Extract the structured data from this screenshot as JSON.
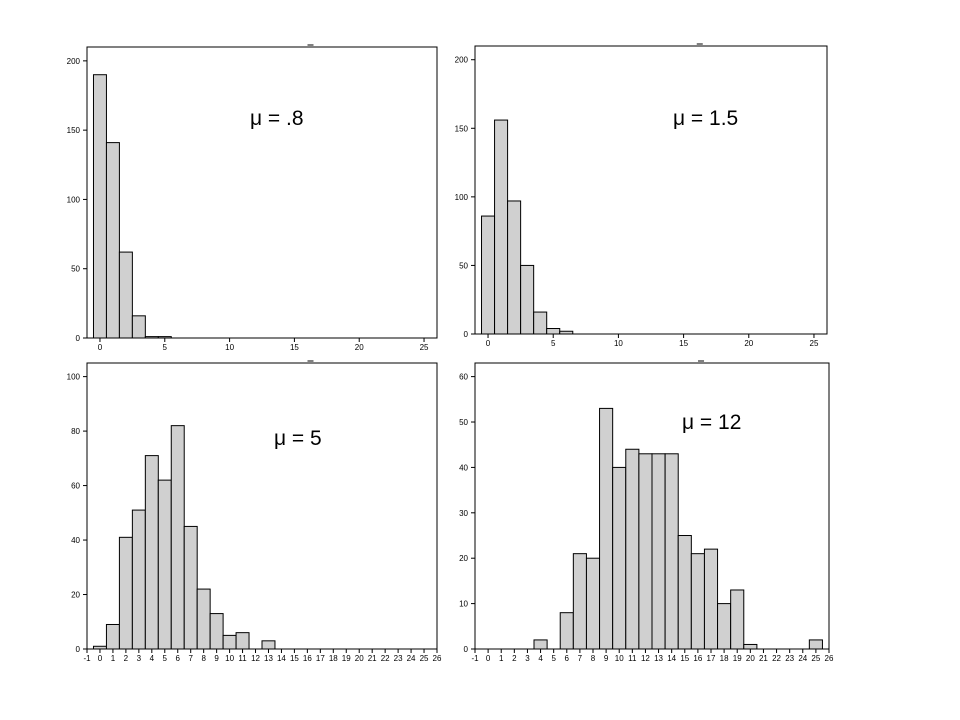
{
  "chart_data": [
    {
      "type": "bar",
      "annotation": "μ = .8",
      "bin_width": 1,
      "x": [
        0,
        1,
        2,
        3,
        4,
        5
      ],
      "values": [
        190,
        141,
        62,
        16,
        1,
        1
      ],
      "xlim": [
        -1,
        26
      ],
      "ylim": [
        0,
        210
      ],
      "xticks": [
        0,
        5,
        10,
        15,
        20,
        25
      ],
      "xtick_labels": [
        "0",
        "5",
        "10",
        "15",
        "20",
        "25"
      ],
      "yticks": [
        0,
        50,
        100,
        150,
        200
      ],
      "ytick_labels": [
        "0",
        "50",
        "100",
        "150",
        "200"
      ],
      "grid": false
    },
    {
      "type": "bar",
      "annotation": "μ = 1.5",
      "bin_width": 1,
      "x": [
        0,
        1,
        2,
        3,
        4,
        5,
        6
      ],
      "values": [
        86,
        156,
        97,
        50,
        16,
        4,
        2
      ],
      "xlim": [
        -1,
        26
      ],
      "ylim": [
        0,
        210
      ],
      "xticks": [
        0,
        5,
        10,
        15,
        20,
        25
      ],
      "xtick_labels": [
        "0",
        "5",
        "10",
        "15",
        "20",
        "25"
      ],
      "yticks": [
        0,
        50,
        100,
        150,
        200
      ],
      "ytick_labels": [
        "0",
        "50",
        "100",
        "150",
        "200"
      ],
      "grid": false
    },
    {
      "type": "bar",
      "annotation": "μ = 5",
      "bin_width": 1,
      "x": [
        0,
        1,
        2,
        3,
        4,
        5,
        6,
        7,
        8,
        9,
        10,
        11,
        13
      ],
      "values": [
        1,
        9,
        41,
        51,
        71,
        62,
        82,
        45,
        22,
        13,
        5,
        6,
        3
      ],
      "xlim": [
        -1,
        26
      ],
      "ylim": [
        0,
        105
      ],
      "xticks": [
        -1,
        0,
        1,
        2,
        3,
        4,
        5,
        6,
        7,
        8,
        9,
        10,
        11,
        12,
        13,
        14,
        15,
        16,
        17,
        18,
        19,
        20,
        21,
        22,
        23,
        24,
        25,
        26
      ],
      "xtick_labels": [
        "-1",
        "0",
        "1",
        "2",
        "3",
        "4",
        "5",
        "6",
        "7",
        "8",
        "9",
        "10",
        "11",
        "12",
        "13",
        "14",
        "15",
        "16",
        "17",
        "18",
        "19",
        "20",
        "21",
        "22",
        "23",
        "24",
        "25",
        "26"
      ],
      "yticks": [
        0,
        20,
        40,
        60,
        80,
        100
      ],
      "ytick_labels": [
        "0",
        "20",
        "40",
        "60",
        "80",
        "100"
      ],
      "grid": false
    },
    {
      "type": "bar",
      "annotation": "μ = 12",
      "bin_width": 1,
      "x": [
        4,
        6,
        7,
        8,
        9,
        10,
        11,
        12,
        13,
        14,
        15,
        16,
        17,
        18,
        19,
        20,
        25
      ],
      "values": [
        2,
        8,
        21,
        20,
        53,
        40,
        44,
        43,
        43,
        43,
        25,
        21,
        22,
        10,
        13,
        1,
        2
      ],
      "xlim": [
        -1,
        26
      ],
      "ylim": [
        0,
        63
      ],
      "xticks": [
        -1,
        0,
        1,
        2,
        3,
        4,
        5,
        6,
        7,
        8,
        9,
        10,
        11,
        12,
        13,
        14,
        15,
        16,
        17,
        18,
        19,
        20,
        21,
        22,
        23,
        24,
        25,
        26
      ],
      "xtick_labels": [
        "-1",
        "0",
        "1",
        "2",
        "3",
        "4",
        "5",
        "6",
        "7",
        "8",
        "9",
        "10",
        "11",
        "12",
        "13",
        "14",
        "15",
        "16",
        "17",
        "18",
        "19",
        "20",
        "21",
        "22",
        "23",
        "24",
        "25",
        "26"
      ],
      "yticks": [
        0,
        10,
        20,
        30,
        40,
        50,
        60
      ],
      "ytick_labels": [
        "0",
        "10",
        "20",
        "30",
        "40",
        "50",
        "60"
      ],
      "grid": false
    }
  ]
}
